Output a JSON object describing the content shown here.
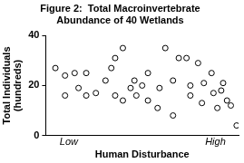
{
  "chart_data": {
    "type": "scatter",
    "title": [
      "Figure 2:  Total Macroinvertebrate",
      "Abundance of 40 Wetlands"
    ],
    "x_label": "Human Disturbance",
    "y_label": [
      "Total Individuals",
      "(hundreds)"
    ],
    "x": [
      0.5,
      1.0,
      1.0,
      1.5,
      1.7,
      2.1,
      2.1,
      2.6,
      3.1,
      3.4,
      3.6,
      3.6,
      4.0,
      4.0,
      4.4,
      4.6,
      4.7,
      5.0,
      5.3,
      5.3,
      5.8,
      5.9,
      6.2,
      6.6,
      6.6,
      6.9,
      7.3,
      7.5,
      7.5,
      7.9,
      8.1,
      8.2,
      8.6,
      8.7,
      8.9,
      9.1,
      9.2,
      9.4,
      9.6,
      9.9
    ],
    "values": [
      27,
      24,
      16,
      25,
      19,
      25,
      16,
      17,
      22,
      27,
      31,
      16,
      35,
      14,
      19,
      22,
      16,
      20,
      25,
      14,
      11,
      19,
      35,
      8,
      22,
      31,
      31,
      20,
      16,
      29,
      13,
      21,
      25,
      17,
      11,
      18,
      21,
      14,
      12,
      4
    ],
    "color": "#000000",
    "marker": "circle",
    "xlim": [
      0,
      10
    ],
    "xticks": [
      {
        "value": 1.2,
        "label": "Low"
      },
      {
        "value": 8.8,
        "label": "High"
      }
    ],
    "ylim": [
      0,
      40
    ],
    "yticks": [
      0,
      20,
      40
    ],
    "grid": false
  }
}
